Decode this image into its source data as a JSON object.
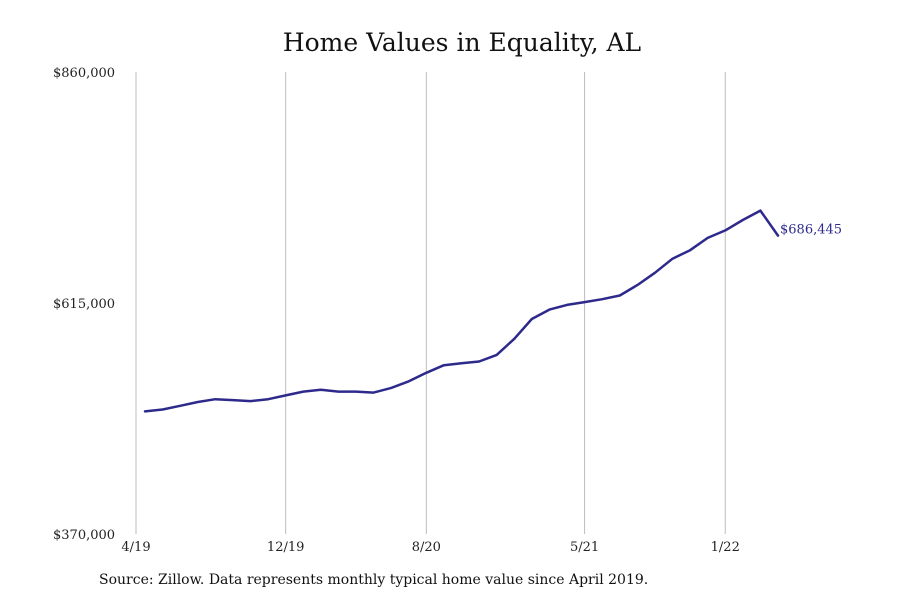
{
  "chart_data": {
    "type": "line",
    "title": "Home Values in Equality, AL",
    "xlabel": "",
    "ylabel": "",
    "ylim": [
      370000,
      860000
    ],
    "y_ticks": [
      {
        "value": 370000,
        "label": "$370,000"
      },
      {
        "value": 615000,
        "label": "$615,000"
      },
      {
        "value": 860000,
        "label": "$860,000"
      }
    ],
    "x_ticks": [
      {
        "index": 0,
        "label": "4/19"
      },
      {
        "index": 8,
        "label": "12/19"
      },
      {
        "index": 16,
        "label": "8/20"
      },
      {
        "index": 25,
        "label": "5/21"
      },
      {
        "index": 33,
        "label": "1/22"
      }
    ],
    "x": [
      "4/19",
      "5/19",
      "6/19",
      "7/19",
      "8/19",
      "9/19",
      "10/19",
      "11/19",
      "12/19",
      "1/20",
      "2/20",
      "3/20",
      "4/20",
      "5/20",
      "6/20",
      "7/20",
      "8/20",
      "9/20",
      "10/20",
      "11/20",
      "12/20",
      "1/21",
      "2/21",
      "3/21",
      "4/21",
      "5/21",
      "6/21",
      "7/21",
      "8/21",
      "9/21",
      "10/21",
      "11/21",
      "12/21",
      "1/22",
      "2/22",
      "3/22",
      "4/22"
    ],
    "series": [
      {
        "values": [
          500000,
          502000,
          506000,
          510000,
          513000,
          512000,
          511000,
          513000,
          517000,
          521000,
          523000,
          521000,
          521000,
          520000,
          525000,
          532000,
          541000,
          549000,
          551000,
          553000,
          560000,
          577000,
          598000,
          608000,
          613000,
          616000,
          619000,
          623000,
          634000,
          647000,
          662000,
          671000,
          684000,
          692000,
          703000,
          713000,
          686445
        ],
        "color": "#2e2a8c",
        "end_label": "$686,445"
      }
    ],
    "grid": {
      "vertical": true,
      "horizontal": false
    },
    "legend": "none"
  },
  "source_text": "Source: Zillow. Data represents monthly typical home value since April 2019."
}
